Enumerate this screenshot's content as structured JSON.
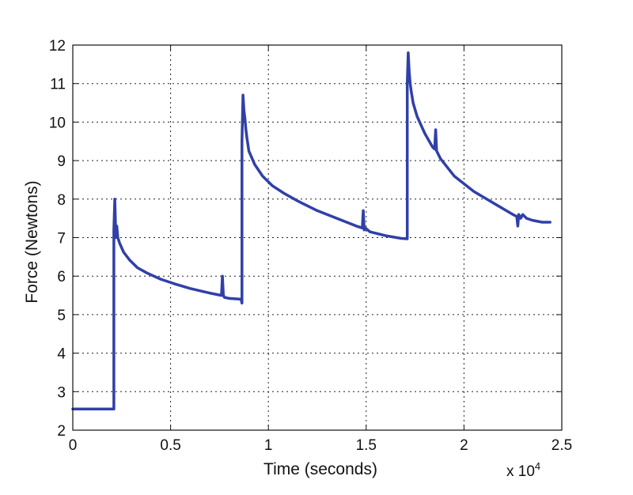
{
  "chart_data": {
    "type": "line",
    "title": "",
    "xlabel": "Time (seconds)",
    "ylabel": "Force (Newtons)",
    "x_multiplier_base": "x 10",
    "x_multiplier_exp": "4",
    "xlim": [
      0,
      2.5
    ],
    "ylim": [
      2,
      12
    ],
    "x_ticks": [
      0,
      0.5,
      1,
      1.5,
      2,
      2.5
    ],
    "x_tick_labels": [
      "0",
      "0.5",
      "1",
      "1.5",
      "2",
      "2.5"
    ],
    "y_ticks": [
      2,
      3,
      4,
      5,
      6,
      7,
      8,
      9,
      10,
      11,
      12
    ],
    "y_tick_labels": [
      "2",
      "3",
      "4",
      "5",
      "6",
      "7",
      "8",
      "9",
      "10",
      "11",
      "12"
    ],
    "grid": true,
    "grid_style": "dotted",
    "line_color": "#3040a8",
    "series": [
      {
        "x": [
          0,
          0.21,
          0.21,
          0.215,
          0.22,
          0.225,
          0.23,
          0.24,
          0.26,
          0.29,
          0.33,
          0.38,
          0.45,
          0.52,
          0.6,
          0.7,
          0.76,
          0.765,
          0.77,
          0.775,
          0.8,
          0.86,
          0.865,
          0.865,
          0.87,
          0.875,
          0.88,
          0.885,
          0.89,
          0.9,
          0.93,
          0.97,
          1.02,
          1.08,
          1.15,
          1.25,
          1.35,
          1.45,
          1.48,
          1.485,
          1.49,
          1.495,
          1.52,
          1.6,
          1.68,
          1.71,
          1.71,
          1.715,
          1.72,
          1.725,
          1.73,
          1.74,
          1.76,
          1.8,
          1.84,
          1.85,
          1.855,
          1.86,
          1.88,
          1.95,
          2.05,
          2.15,
          2.25,
          2.27,
          2.275,
          2.28,
          2.29,
          2.3,
          2.32,
          2.35,
          2.4,
          2.44
        ],
        "y": [
          2.55,
          2.55,
          7.2,
          8.0,
          7.0,
          7.3,
          7.0,
          6.85,
          6.62,
          6.42,
          6.22,
          6.08,
          5.92,
          5.8,
          5.68,
          5.56,
          5.5,
          6.0,
          5.5,
          5.45,
          5.42,
          5.4,
          5.3,
          9.5,
          10.7,
          10.3,
          10.1,
          9.8,
          9.6,
          9.25,
          8.9,
          8.6,
          8.35,
          8.15,
          7.95,
          7.7,
          7.5,
          7.3,
          7.25,
          7.7,
          7.2,
          7.25,
          7.15,
          7.05,
          6.98,
          6.97,
          11.0,
          11.8,
          11.3,
          11.0,
          10.8,
          10.5,
          10.15,
          9.7,
          9.35,
          9.3,
          9.8,
          9.25,
          9.05,
          8.6,
          8.2,
          7.9,
          7.6,
          7.55,
          7.3,
          7.6,
          7.5,
          7.6,
          7.5,
          7.45,
          7.4,
          7.4
        ]
      }
    ]
  }
}
